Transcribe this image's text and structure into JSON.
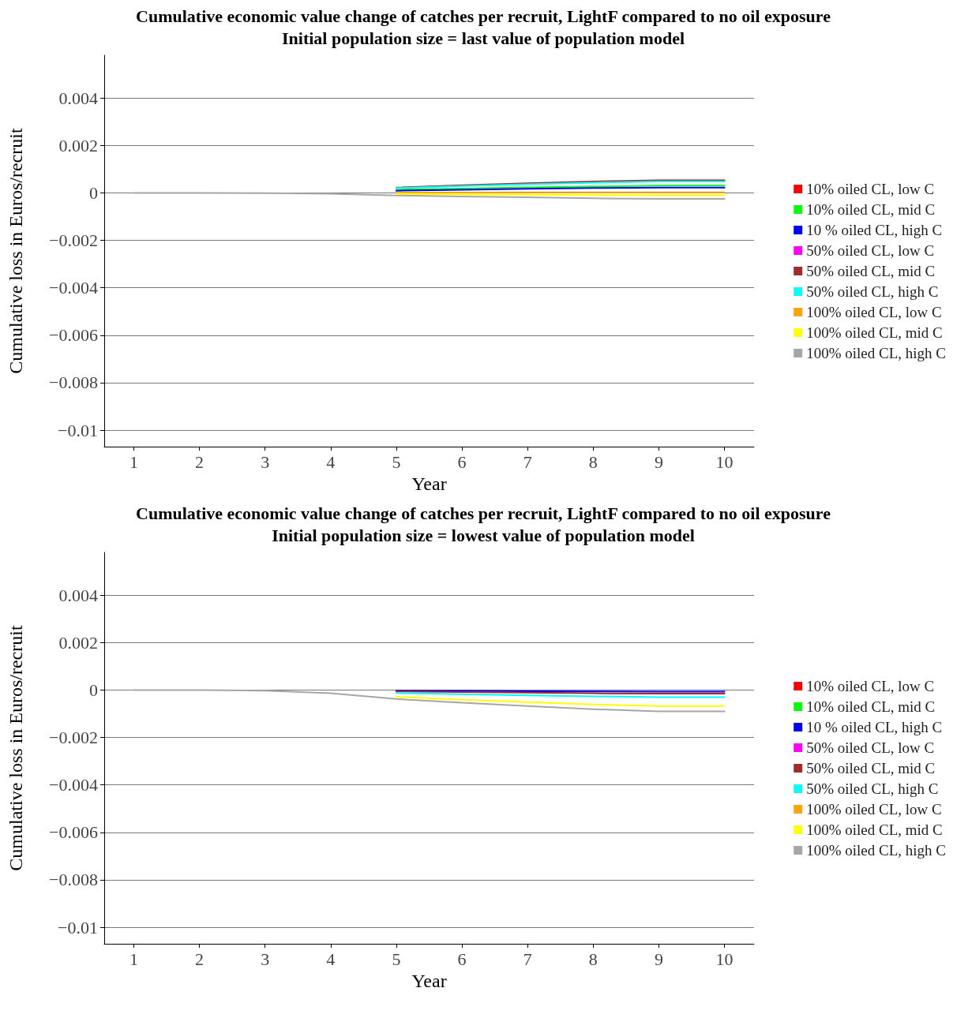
{
  "chart_data": [
    {
      "type": "line",
      "title": "Cumulative economic value change of catches per recruit, LightF compared to no oil exposure",
      "subtitle": "Initial population size = last value of population model",
      "xlabel": "Year",
      "ylabel": "Cumulative loss in Euros/recruit",
      "x": [
        1,
        2,
        3,
        4,
        5,
        6,
        7,
        8,
        9,
        10
      ],
      "xlim": [
        0.55,
        10.45
      ],
      "xticks": [
        1,
        2,
        3,
        4,
        5,
        6,
        7,
        8,
        9,
        10
      ],
      "ylim": [
        -0.0107,
        0.0058
      ],
      "yticks": [
        {
          "value": -0.01,
          "label": "−0.01"
        },
        {
          "value": -0.008,
          "label": "−0.008"
        },
        {
          "value": -0.006,
          "label": "−0.006"
        },
        {
          "value": -0.004,
          "label": "−0.004"
        },
        {
          "value": -0.002,
          "label": "−0.002"
        },
        0,
        0.002,
        0.004
      ],
      "grid": "y",
      "legend": "right",
      "marker": "none",
      "line_style": "solid",
      "series": [
        {
          "name": "10% oiled CL, low C",
          "color": "#ff0000",
          "values": [
            null,
            null,
            null,
            null,
            null,
            null,
            null,
            null,
            null,
            null
          ]
        },
        {
          "name": "10% oiled CL, mid C",
          "color": "#00ff00",
          "values": [
            null,
            null,
            null,
            null,
            0.00013,
            0.00018,
            0.00023,
            0.00027,
            0.0003,
            0.0003
          ]
        },
        {
          "name": "10 % oiled CL, high C",
          "color": "#0000ff",
          "values": [
            null,
            null,
            null,
            null,
            9e-05,
            0.00013,
            0.00017,
            0.0002,
            0.00022,
            0.00022
          ]
        },
        {
          "name": "50% oiled CL, low C",
          "color": "#ff00ff",
          "values": [
            null,
            null,
            null,
            null,
            null,
            null,
            null,
            null,
            null,
            null
          ]
        },
        {
          "name": "50% oiled CL, mid C",
          "color": "#a52a2a",
          "values": [
            null,
            null,
            null,
            null,
            0.00022,
            0.00032,
            0.0004,
            0.00048,
            0.00053,
            0.00053
          ]
        },
        {
          "name": "50% oiled CL, high C",
          "color": "#00ffff",
          "values": [
            null,
            null,
            null,
            null,
            0.0002,
            0.00029,
            0.00036,
            0.00043,
            0.00048,
            0.00048
          ]
        },
        {
          "name": "100% oiled CL, low C",
          "color": "#ffa500",
          "values": [
            null,
            null,
            null,
            null,
            1e-05,
            1e-05,
            2e-05,
            2e-05,
            2e-05,
            2e-05
          ]
        },
        {
          "name": "100% oiled CL, mid C",
          "color": "#ffff00",
          "values": [
            null,
            null,
            null,
            null,
            -4e-05,
            -6e-05,
            -8e-05,
            -9e-05,
            -0.0001,
            -0.0001
          ]
        },
        {
          "name": "100% oiled CL, high C",
          "color": "#a6a6a6",
          "values": [
            0,
            0,
            -1e-05,
            -4e-05,
            -0.00011,
            -0.00015,
            -0.00019,
            -0.00023,
            -0.00025,
            -0.00025
          ]
        }
      ]
    },
    {
      "type": "line",
      "title": "Cumulative economic value change of catches per recruit, LightF compared to no oil exposure",
      "subtitle": "Initial population size = lowest value of population model",
      "xlabel": "Year",
      "ylabel": "Cumulative loss in Euros/recruit",
      "x": [
        1,
        2,
        3,
        4,
        5,
        6,
        7,
        8,
        9,
        10
      ],
      "xlim": [
        0.55,
        10.45
      ],
      "xticks": [
        1,
        2,
        3,
        4,
        5,
        6,
        7,
        8,
        9,
        10
      ],
      "ylim": [
        -0.0107,
        0.0058
      ],
      "yticks": [
        {
          "value": -0.01,
          "label": "−0.01"
        },
        {
          "value": -0.008,
          "label": "−0.008"
        },
        {
          "value": -0.006,
          "label": "−0.006"
        },
        {
          "value": -0.004,
          "label": "−0.004"
        },
        {
          "value": -0.002,
          "label": "−0.002"
        },
        0,
        0.002,
        0.004
      ],
      "grid": "y",
      "legend": "right",
      "marker": "none",
      "line_style": "solid",
      "series": [
        {
          "name": "10% oiled CL, low C",
          "color": "#ff0000",
          "values": [
            null,
            null,
            null,
            null,
            null,
            null,
            null,
            null,
            null,
            null
          ]
        },
        {
          "name": "10% oiled CL, mid C",
          "color": "#00ff00",
          "values": [
            null,
            null,
            null,
            null,
            null,
            null,
            null,
            null,
            null,
            null
          ]
        },
        {
          "name": "10 % oiled CL, high C",
          "color": "#0000ff",
          "values": [
            null,
            null,
            null,
            null,
            -3e-05,
            -4e-05,
            -5e-05,
            -6e-05,
            -7e-05,
            -7e-05
          ]
        },
        {
          "name": "50% oiled CL, low C",
          "color": "#ff00ff",
          "values": [
            null,
            null,
            null,
            null,
            null,
            null,
            null,
            null,
            null,
            null
          ]
        },
        {
          "name": "50% oiled CL, mid C",
          "color": "#a52a2a",
          "values": [
            null,
            null,
            null,
            null,
            -6e-05,
            -9e-05,
            -0.00011,
            -0.00014,
            -0.00015,
            -0.00015
          ]
        },
        {
          "name": "50% oiled CL, high C",
          "color": "#00ffff",
          "values": [
            null,
            null,
            null,
            null,
            -0.00013,
            -0.00018,
            -0.00023,
            -0.00027,
            -0.0003,
            -0.0003
          ]
        },
        {
          "name": "100% oiled CL, low C",
          "color": "#ffa500",
          "values": [
            null,
            null,
            null,
            null,
            null,
            null,
            null,
            null,
            null,
            null
          ]
        },
        {
          "name": "100% oiled CL, mid C",
          "color": "#ffff00",
          "values": [
            null,
            null,
            null,
            null,
            -0.00029,
            -0.00041,
            -0.00051,
            -0.00061,
            -0.00068,
            -0.00068
          ]
        },
        {
          "name": "100% oiled CL, high C",
          "color": "#a6a6a6",
          "values": [
            0,
            0,
            -3e-05,
            -0.00014,
            -0.00038,
            -0.00054,
            -0.00068,
            -0.00081,
            -0.0009,
            -0.0009
          ]
        }
      ]
    }
  ]
}
